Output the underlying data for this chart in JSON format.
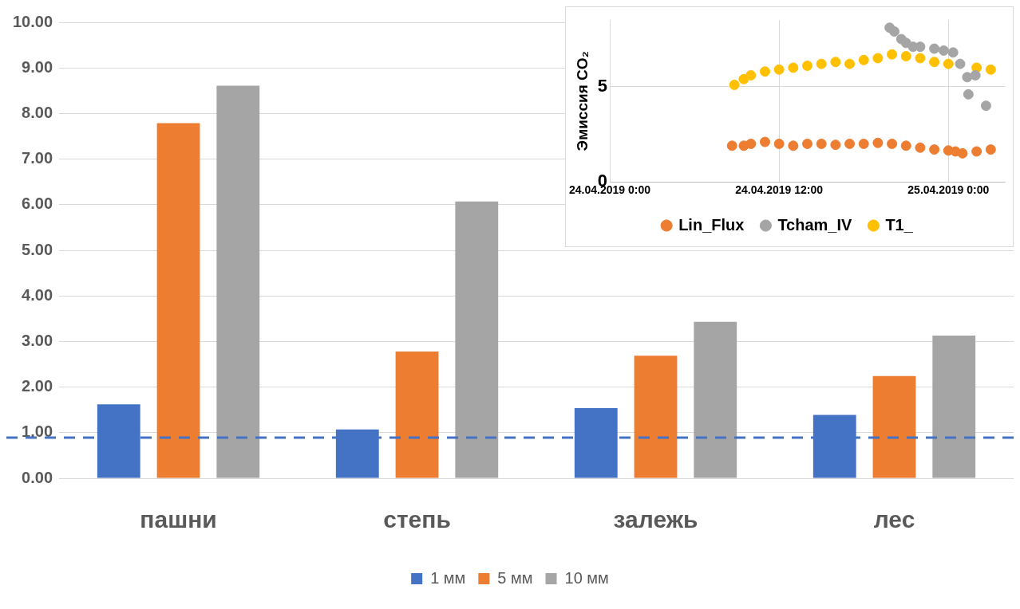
{
  "chart_data": [
    {
      "type": "bar",
      "categories": [
        "пашни",
        "степь",
        "залежь",
        "лес"
      ],
      "series": [
        {
          "name": "1 мм",
          "color": "#4472c4",
          "values": [
            1.62,
            1.07,
            1.54,
            1.39
          ]
        },
        {
          "name": "5 мм",
          "color": "#ed7d31",
          "values": [
            7.79,
            2.78,
            2.69,
            2.24
          ]
        },
        {
          "name": "10 мм",
          "color": "#a5a5a5",
          "values": [
            8.61,
            6.07,
            3.43,
            3.13
          ]
        }
      ],
      "ylim": [
        0,
        10
      ],
      "yticks": [
        {
          "value": 0,
          "label": "0.00"
        },
        {
          "value": 1,
          "label": "1.00"
        },
        {
          "value": 2,
          "label": "2.00"
        },
        {
          "value": 3,
          "label": "3.00"
        },
        {
          "value": 4,
          "label": "4.00"
        },
        {
          "value": 5,
          "label": "5.00"
        },
        {
          "value": 6,
          "label": "6.00"
        },
        {
          "value": 7,
          "label": "7.00"
        },
        {
          "value": 8,
          "label": "8.00"
        },
        {
          "value": 9,
          "label": "9.00"
        },
        {
          "value": 10,
          "label": "10.00"
        }
      ],
      "ref_lines": [
        {
          "axis": "y",
          "value": 0.89,
          "color": "#4472c4",
          "line_style": "dashed"
        }
      ],
      "grid": "y",
      "legend": "bottom"
    },
    {
      "type": "scatter",
      "ylabel": "Эмиссия CO₂",
      "marker": "circle",
      "series": [
        {
          "name": "Lin_Flux",
          "color": "#ed7d31",
          "x": [
            "2019-04-24T08:40",
            "2019-04-24T09:30",
            "2019-04-24T10:00",
            "2019-04-24T11:00",
            "2019-04-24T12:00",
            "2019-04-24T13:00",
            "2019-04-24T14:00",
            "2019-04-24T15:00",
            "2019-04-24T16:00",
            "2019-04-24T17:00",
            "2019-04-24T18:00",
            "2019-04-24T19:00",
            "2019-04-24T20:00",
            "2019-04-24T21:00",
            "2019-04-24T22:00",
            "2019-04-24T23:00",
            "2019-04-25T00:00",
            "2019-04-25T00:30",
            "2019-04-25T01:00",
            "2019-04-25T02:00",
            "2019-04-25T03:00"
          ],
          "values": [
            1.9,
            1.9,
            2.0,
            2.1,
            2.0,
            1.9,
            2.0,
            2.0,
            1.95,
            2.0,
            2.0,
            2.05,
            2.0,
            1.9,
            1.8,
            1.7,
            1.65,
            1.6,
            1.5,
            1.6,
            1.7
          ]
        },
        {
          "name": "Tcham_IV",
          "color": "#a5a5a5",
          "x": [
            "2019-04-24T19:50",
            "2019-04-24T20:10",
            "2019-04-24T20:40",
            "2019-04-24T21:00",
            "2019-04-24T21:30",
            "2019-04-24T22:00",
            "2019-04-24T23:00",
            "2019-04-24T23:40",
            "2019-04-25T00:20",
            "2019-04-25T00:50",
            "2019-04-25T01:20",
            "2019-04-25T01:25",
            "2019-04-25T01:55",
            "2019-04-25T02:40"
          ],
          "values": [
            8.1,
            7.9,
            7.5,
            7.3,
            7.1,
            7.1,
            7.0,
            6.9,
            6.8,
            6.2,
            5.5,
            4.6,
            5.6,
            4.0
          ]
        },
        {
          "name": "T1_",
          "color": "#ffc000",
          "x": [
            "2019-04-24T08:50",
            "2019-04-24T09:30",
            "2019-04-24T10:00",
            "2019-04-24T11:00",
            "2019-04-24T12:00",
            "2019-04-24T13:00",
            "2019-04-24T14:00",
            "2019-04-24T15:00",
            "2019-04-24T16:00",
            "2019-04-24T17:00",
            "2019-04-24T18:00",
            "2019-04-24T19:00",
            "2019-04-24T20:00",
            "2019-04-24T21:00",
            "2019-04-24T22:00",
            "2019-04-24T23:00",
            "2019-04-25T00:00",
            "2019-04-25T01:00",
            "2019-04-25T02:00",
            "2019-04-25T03:00"
          ],
          "values": [
            5.1,
            5.4,
            5.6,
            5.8,
            5.9,
            6.0,
            6.1,
            6.2,
            6.3,
            6.2,
            6.4,
            6.5,
            6.7,
            6.6,
            6.5,
            6.3,
            6.2,
            null,
            6.0,
            5.9
          ]
        }
      ],
      "xlim": [
        "2019-04-24T00:00",
        "2019-04-25T04:00"
      ],
      "xticks": [
        {
          "value": "2019-04-24T00:00",
          "label": "24.04.2019 0:00"
        },
        {
          "value": "2019-04-24T12:00",
          "label": "24.04.2019 12:00"
        },
        {
          "value": "2019-04-25T00:00",
          "label": "25.04.2019 0:00"
        }
      ],
      "ylim": [
        0,
        8.5
      ],
      "yticks": [
        0,
        5
      ],
      "grid": true,
      "legend": "bottom"
    }
  ]
}
